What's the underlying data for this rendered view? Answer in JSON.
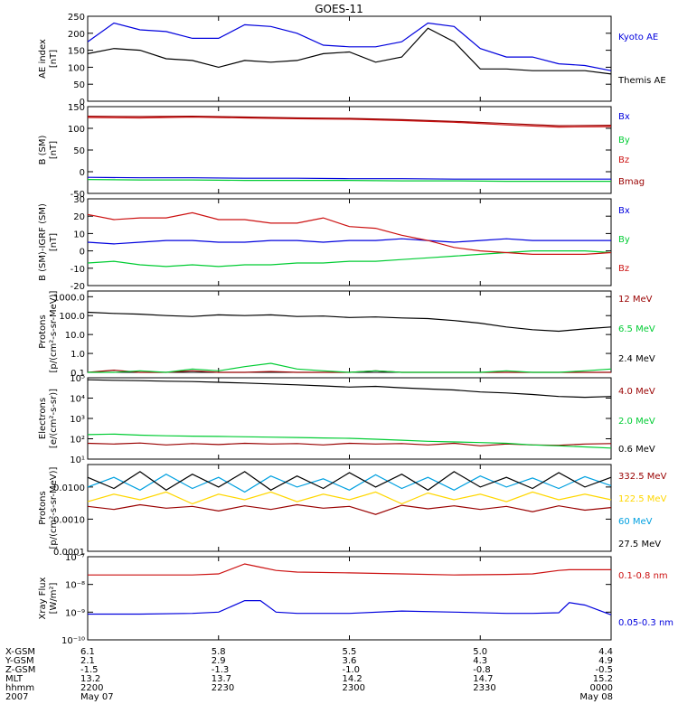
{
  "title": "GOES-11",
  "colors": {
    "black": "#000000",
    "blue": "#0000dd",
    "green": "#00cc33",
    "red": "#cc1111",
    "darkred": "#990000",
    "yellow": "#ffd700",
    "cyan": "#00a0e0"
  },
  "chart_data": [
    {
      "type": "line",
      "id": "ae",
      "ylabel": [
        "AE index",
        "[nT]"
      ],
      "scale": "linear",
      "ylim": [
        0,
        250
      ],
      "yticks": [
        0,
        50,
        100,
        150,
        200,
        250
      ],
      "ytick_labels": [
        "0",
        "50",
        "100",
        "150",
        "200",
        "250"
      ],
      "x": [
        0,
        0.05,
        0.1,
        0.15,
        0.2,
        0.25,
        0.3,
        0.35,
        0.4,
        0.45,
        0.5,
        0.55,
        0.6,
        0.65,
        0.7,
        0.75,
        0.8,
        0.85,
        0.9,
        0.95,
        1.0
      ],
      "series": [
        {
          "name": "Kyoto AE",
          "color": "blue",
          "values": [
            175,
            230,
            210,
            205,
            185,
            185,
            225,
            220,
            200,
            165,
            160,
            160,
            175,
            230,
            220,
            155,
            130,
            130,
            110,
            105,
            90
          ]
        },
        {
          "name": "Themis AE",
          "color": "black",
          "values": [
            140,
            155,
            150,
            125,
            120,
            100,
            120,
            115,
            120,
            140,
            145,
            115,
            130,
            215,
            175,
            95,
            95,
            90,
            90,
            90,
            80
          ]
        }
      ]
    },
    {
      "type": "line",
      "id": "b",
      "ylabel": [
        "B (SM)",
        "[nT]"
      ],
      "scale": "linear",
      "ylim": [
        -50,
        150
      ],
      "yticks": [
        -50,
        0,
        50,
        100,
        150
      ],
      "ytick_labels": [
        "-50",
        "0",
        "50",
        "100",
        "150"
      ],
      "x": [
        0,
        0.1,
        0.2,
        0.3,
        0.4,
        0.5,
        0.6,
        0.7,
        0.8,
        0.9,
        1.0
      ],
      "series": [
        {
          "name": "Bx",
          "color": "blue",
          "values": [
            -13,
            -14,
            -14,
            -15,
            -15,
            -16,
            -16,
            -17,
            -17,
            -17,
            -17
          ]
        },
        {
          "name": "By",
          "color": "green",
          "values": [
            -18,
            -19,
            -19,
            -20,
            -20,
            -20,
            -21,
            -21,
            -22,
            -22,
            -22
          ]
        },
        {
          "name": "Bz",
          "color": "red",
          "values": [
            125,
            124,
            126,
            124,
            122,
            121,
            118,
            114,
            108,
            103,
            104
          ]
        },
        {
          "name": "Bmag",
          "color": "darkred",
          "values": [
            128,
            127,
            128,
            126,
            124,
            123,
            120,
            116,
            111,
            106,
            107
          ]
        }
      ]
    },
    {
      "type": "line",
      "id": "db",
      "ylabel": [
        "B (SM)-IGRF (SM)",
        "[nT]"
      ],
      "scale": "linear",
      "ylim": [
        -20,
        30
      ],
      "yticks": [
        -20,
        -10,
        0,
        10,
        20,
        30
      ],
      "ytick_labels": [
        "-20",
        "-10",
        "0",
        "10",
        "20",
        "30"
      ],
      "x": [
        0,
        0.05,
        0.1,
        0.15,
        0.2,
        0.25,
        0.3,
        0.35,
        0.4,
        0.45,
        0.5,
        0.55,
        0.6,
        0.65,
        0.7,
        0.75,
        0.8,
        0.85,
        0.9,
        0.95,
        1.0
      ],
      "series": [
        {
          "name": "Bx",
          "color": "blue",
          "values": [
            5,
            4,
            5,
            6,
            6,
            5,
            5,
            6,
            6,
            5,
            6,
            6,
            7,
            6,
            5,
            6,
            7,
            6,
            6,
            6,
            6
          ]
        },
        {
          "name": "By",
          "color": "green",
          "values": [
            -7,
            -6,
            -8,
            -9,
            -8,
            -9,
            -8,
            -8,
            -7,
            -7,
            -6,
            -6,
            -5,
            -4,
            -3,
            -2,
            -1,
            0,
            0,
            0,
            -1
          ]
        },
        {
          "name": "Bz",
          "color": "red",
          "values": [
            21,
            18,
            19,
            19,
            22,
            18,
            18,
            16,
            16,
            19,
            14,
            13,
            9,
            6,
            2,
            0,
            -1,
            -2,
            -2,
            -2,
            -1
          ]
        }
      ]
    },
    {
      "type": "line",
      "id": "protons_low",
      "ylabel": [
        "Protons",
        "[p/(cm²-s-sr-MeV)]"
      ],
      "scale": "log",
      "ylim": [
        0.1,
        2000
      ],
      "yticks": [
        0.1,
        1,
        10,
        100,
        1000
      ],
      "ytick_labels": [
        "0.1",
        "1.0",
        "10.0",
        "100.0",
        "1000.0"
      ],
      "x": [
        0,
        0.05,
        0.1,
        0.15,
        0.2,
        0.25,
        0.3,
        0.35,
        0.4,
        0.45,
        0.5,
        0.55,
        0.6,
        0.65,
        0.7,
        0.75,
        0.8,
        0.85,
        0.9,
        0.95,
        1.0
      ],
      "series": [
        {
          "name": "12 MeV",
          "color": "darkred",
          "values": [
            0.1,
            0.13,
            0.1,
            0.1,
            0.12,
            0.1,
            0.1,
            0.11,
            0.1,
            0.1,
            0.1,
            0.12,
            0.1,
            0.1,
            0.1,
            0.1,
            0.1,
            0.1,
            0.1,
            0.1,
            0.1
          ]
        },
        {
          "name": "6.5 MeV",
          "color": "green",
          "values": [
            0.1,
            0.1,
            0.12,
            0.1,
            0.15,
            0.12,
            0.2,
            0.3,
            0.15,
            0.12,
            0.1,
            0.12,
            0.1,
            0.1,
            0.1,
            0.1,
            0.12,
            0.1,
            0.1,
            0.12,
            0.15
          ]
        },
        {
          "name": "2.4 MeV",
          "color": "black",
          "values": [
            150,
            130,
            120,
            100,
            90,
            110,
            100,
            110,
            90,
            95,
            80,
            85,
            75,
            70,
            55,
            40,
            25,
            18,
            15,
            20,
            25
          ]
        }
      ]
    },
    {
      "type": "line",
      "id": "electrons",
      "ylabel": [
        "Electrons",
        "[e/(cm²-s-sr)]"
      ],
      "scale": "log",
      "ylim": [
        10,
        100000
      ],
      "yticks": [
        10,
        100,
        1000,
        10000,
        100000
      ],
      "ytick_labels": [
        "10¹",
        "10²",
        "10³",
        "10⁴",
        "10⁵"
      ],
      "x": [
        0,
        0.05,
        0.1,
        0.15,
        0.2,
        0.25,
        0.3,
        0.35,
        0.4,
        0.45,
        0.5,
        0.55,
        0.6,
        0.65,
        0.7,
        0.75,
        0.8,
        0.85,
        0.9,
        0.95,
        1.0
      ],
      "series": [
        {
          "name": "4.0 MeV",
          "color": "darkred",
          "values": [
            60,
            55,
            62,
            50,
            58,
            52,
            60,
            55,
            58,
            50,
            60,
            55,
            58,
            50,
            60,
            45,
            55,
            50,
            48,
            55,
            58
          ]
        },
        {
          "name": "2.0 MeV",
          "color": "green",
          "values": [
            160,
            170,
            150,
            140,
            135,
            130,
            125,
            120,
            115,
            110,
            105,
            95,
            85,
            75,
            70,
            65,
            60,
            50,
            45,
            40,
            35
          ]
        },
        {
          "name": "0.6 MeV",
          "color": "black",
          "values": [
            80000,
            75000,
            72000,
            68000,
            65000,
            60000,
            55000,
            50000,
            45000,
            40000,
            35000,
            38000,
            32000,
            28000,
            25000,
            20000,
            18000,
            15000,
            12000,
            11000,
            12000
          ]
        }
      ]
    },
    {
      "type": "line",
      "id": "protons_high",
      "ylabel": [
        "Protons",
        "[p/(cm²-s-sr-MeV)]"
      ],
      "scale": "log",
      "ylim": [
        0.0001,
        0.05
      ],
      "yticks": [
        0.0001,
        0.001,
        0.01
      ],
      "ytick_labels": [
        "0.0001",
        "0.0010",
        "0.0100"
      ],
      "x": [
        0,
        0.05,
        0.1,
        0.15,
        0.2,
        0.25,
        0.3,
        0.35,
        0.4,
        0.45,
        0.5,
        0.55,
        0.6,
        0.65,
        0.7,
        0.75,
        0.8,
        0.85,
        0.9,
        0.95,
        1.0
      ],
      "series": [
        {
          "name": "332.5 MeV",
          "color": "darkred",
          "values": [
            0.0025,
            0.002,
            0.0028,
            0.0022,
            0.0025,
            0.0018,
            0.0026,
            0.002,
            0.0028,
            0.0022,
            0.0025,
            0.0014,
            0.0027,
            0.0021,
            0.0026,
            0.002,
            0.0025,
            0.0017,
            0.0026,
            0.0019,
            0.0023
          ]
        },
        {
          "name": "122.5 MeV",
          "color": "yellow",
          "values": [
            0.0035,
            0.006,
            0.004,
            0.007,
            0.003,
            0.006,
            0.004,
            0.007,
            0.0035,
            0.006,
            0.004,
            0.007,
            0.003,
            0.0065,
            0.004,
            0.006,
            0.0035,
            0.007,
            0.004,
            0.006,
            0.004
          ]
        },
        {
          "name": "60 MeV",
          "color": "cyan",
          "values": [
            0.01,
            0.02,
            0.008,
            0.025,
            0.009,
            0.02,
            0.007,
            0.022,
            0.01,
            0.018,
            0.008,
            0.024,
            0.009,
            0.02,
            0.008,
            0.022,
            0.01,
            0.019,
            0.009,
            0.021,
            0.011
          ]
        },
        {
          "name": "27.5 MeV",
          "color": "black",
          "values": [
            0.02,
            0.009,
            0.03,
            0.008,
            0.025,
            0.01,
            0.03,
            0.008,
            0.022,
            0.009,
            0.028,
            0.01,
            0.025,
            0.008,
            0.03,
            0.01,
            0.02,
            0.009,
            0.028,
            0.01,
            0.02
          ]
        }
      ]
    },
    {
      "type": "line",
      "id": "xray",
      "ylabel": [
        "Xray Flux",
        "[W/m²]"
      ],
      "scale": "log",
      "ylim": [
        1e-10,
        1e-07
      ],
      "yticks": [
        1e-10,
        1e-09,
        1e-08,
        1e-07
      ],
      "ytick_labels": [
        "10⁻¹⁰",
        "10⁻⁹",
        "10⁻⁸",
        "10⁻⁷"
      ],
      "x": [
        0,
        0.1,
        0.2,
        0.25,
        0.3,
        0.33,
        0.36,
        0.4,
        0.5,
        0.6,
        0.7,
        0.8,
        0.85,
        0.9,
        0.92,
        0.95,
        1.0
      ],
      "series": [
        {
          "name": "0.1-0.8 nm",
          "color": "red",
          "values": [
            2.2e-08,
            2.2e-08,
            2.2e-08,
            2.4e-08,
            5.5e-08,
            4.2e-08,
            3.2e-08,
            2.8e-08,
            2.6e-08,
            2.4e-08,
            2.2e-08,
            2.3e-08,
            2.4e-08,
            3.2e-08,
            3.4e-08,
            3.4e-08,
            3.4e-08
          ]
        },
        {
          "name": "0.05-0.3 nm",
          "color": "blue",
          "values": [
            8.5e-10,
            8.5e-10,
            9e-10,
            1e-09,
            2.6e-09,
            2.6e-09,
            1e-09,
            9e-10,
            9e-10,
            1.1e-09,
            1e-09,
            9e-10,
            9e-10,
            9.5e-10,
            2.2e-09,
            1.8e-09,
            8e-10
          ]
        }
      ]
    }
  ],
  "ephemeris": {
    "labels": [
      "X-GSM",
      "Y-GSM",
      "Z-GSM",
      "MLT",
      "hhmm",
      "2007"
    ],
    "columns": [
      [
        "6.1",
        "2.1",
        "-1.5",
        "13.2",
        "2200",
        "May 07"
      ],
      [
        "5.8",
        "2.9",
        "-1.3",
        "13.7",
        "2230",
        ""
      ],
      [
        "5.5",
        "3.6",
        "-1.0",
        "14.2",
        "2300",
        ""
      ],
      [
        "5.0",
        "4.3",
        "-0.8",
        "14.7",
        "2330",
        ""
      ],
      [
        "4.4",
        "4.9",
        "-0.5",
        "15.2",
        "0000",
        "May 08"
      ]
    ]
  }
}
